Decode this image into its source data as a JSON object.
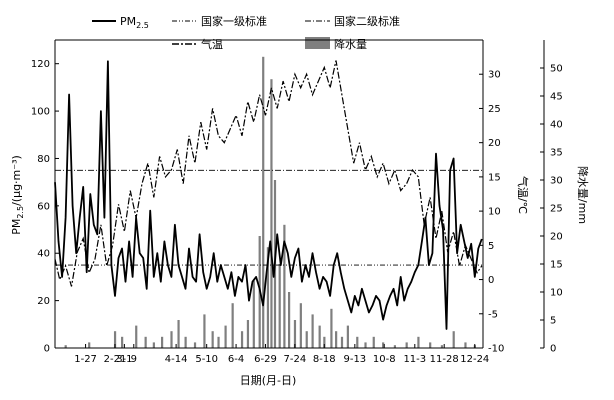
{
  "chart_data": {
    "type": "line",
    "x_label": "日期(月-日)",
    "x_ticks": [
      "1-27",
      "2-21",
      "3-1",
      "9",
      "4-14",
      "5-10",
      "6-4",
      "6-29",
      "7-24",
      "8-18",
      "9-13",
      "10-8",
      "11-3",
      "11-28",
      "12-24"
    ],
    "x_tick_days": [
      27,
      52,
      60,
      68,
      104,
      130,
      155,
      180,
      205,
      230,
      256,
      281,
      307,
      332,
      358
    ],
    "x_range": [
      1,
      365
    ],
    "y_left": {
      "label": "PM",
      "label_sub": "2.5",
      "label_rest": "/(μg·m⁻³)",
      "range": [
        0,
        130
      ],
      "ticks": [
        0,
        20,
        40,
        60,
        80,
        100,
        120
      ]
    },
    "y_right1": {
      "label": "气温/℃",
      "range": [
        -10,
        35
      ],
      "ticks": [
        -10,
        -5,
        0,
        5,
        10,
        15,
        20,
        25,
        30
      ]
    },
    "y_right2": {
      "label": "降水量/mm",
      "range": [
        0,
        55
      ],
      "ticks": [
        0,
        5,
        10,
        15,
        20,
        25,
        30,
        35,
        40,
        45,
        50
      ]
    },
    "reference_lines": [
      {
        "name": "国家一级标准",
        "value": 35,
        "axis": "left"
      },
      {
        "name": "国家二级标准",
        "value": 75,
        "axis": "left"
      }
    ],
    "legend": {
      "pm": "PM",
      "pm_sub": "2.5",
      "grade1": "国家一级标准",
      "grade2": "国家二级标准",
      "temp": "气温",
      "precip": "降水量"
    },
    "pm25": {
      "x": [
        1,
        4,
        7,
        10,
        13,
        16,
        19,
        22,
        25,
        28,
        31,
        34,
        37,
        40,
        43,
        46,
        49,
        52,
        55,
        58,
        61,
        64,
        67,
        70,
        73,
        76,
        79,
        82,
        85,
        88,
        91,
        94,
        97,
        100,
        103,
        106,
        109,
        112,
        115,
        118,
        121,
        124,
        127,
        130,
        133,
        136,
        139,
        142,
        145,
        148,
        151,
        154,
        157,
        160,
        163,
        166,
        169,
        172,
        175,
        178,
        181,
        184,
        187,
        190,
        193,
        196,
        199,
        202,
        205,
        208,
        211,
        214,
        217,
        220,
        223,
        226,
        229,
        232,
        235,
        238,
        241,
        244,
        247,
        250,
        253,
        256,
        259,
        262,
        265,
        268,
        271,
        274,
        277,
        280,
        283,
        286,
        289,
        292,
        295,
        298,
        301,
        304,
        307,
        310,
        313,
        316,
        319,
        322,
        325,
        328,
        331,
        334,
        337,
        340,
        343,
        346,
        349,
        352,
        355,
        358,
        361,
        364
      ],
      "y": [
        70,
        45,
        30,
        55,
        107,
        60,
        40,
        55,
        68,
        32,
        65,
        52,
        48,
        100,
        55,
        121,
        35,
        22,
        38,
        42,
        28,
        45,
        30,
        55,
        40,
        38,
        25,
        58,
        30,
        40,
        28,
        45,
        35,
        30,
        52,
        35,
        30,
        25,
        42,
        30,
        28,
        48,
        32,
        25,
        30,
        40,
        28,
        35,
        30,
        25,
        32,
        22,
        30,
        28,
        35,
        20,
        28,
        30,
        25,
        18,
        32,
        45,
        30,
        48,
        35,
        45,
        40,
        30,
        38,
        42,
        28,
        35,
        30,
        40,
        32,
        25,
        30,
        28,
        22,
        35,
        40,
        32,
        25,
        20,
        15,
        22,
        18,
        25,
        20,
        15,
        18,
        22,
        20,
        12,
        18,
        22,
        25,
        18,
        30,
        20,
        25,
        28,
        32,
        35,
        45,
        55,
        35,
        40,
        82,
        60,
        50,
        8,
        75,
        80,
        40,
        52,
        45,
        38,
        44,
        30,
        42,
        46
      ]
    },
    "temperature": {
      "x": [
        1,
        5,
        10,
        15,
        20,
        25,
        30,
        35,
        40,
        45,
        50,
        55,
        60,
        65,
        70,
        75,
        80,
        85,
        90,
        95,
        100,
        105,
        110,
        115,
        120,
        125,
        130,
        135,
        140,
        145,
        150,
        155,
        160,
        165,
        170,
        175,
        180,
        185,
        190,
        195,
        200,
        205,
        210,
        215,
        220,
        225,
        230,
        235,
        240,
        245,
        250,
        255,
        260,
        265,
        270,
        275,
        280,
        285,
        290,
        295,
        300,
        305,
        310,
        315,
        320,
        325,
        330,
        335,
        340,
        345,
        350,
        355,
        360,
        364
      ],
      "y": [
        3,
        0,
        2,
        -1,
        4,
        6,
        1,
        3,
        8,
        2,
        5,
        11,
        7,
        13,
        9,
        14,
        17,
        12,
        18,
        15,
        16,
        19,
        14,
        21,
        17,
        23,
        19,
        25,
        21,
        20,
        22,
        24,
        21,
        26,
        23,
        27,
        24,
        28,
        25,
        29,
        26,
        30,
        28,
        30,
        27,
        29,
        31,
        28,
        32,
        27,
        22,
        17,
        20,
        16,
        18,
        15,
        17,
        14,
        16,
        13,
        14,
        16,
        15,
        8,
        12,
        6,
        10,
        4,
        7,
        2,
        5,
        3,
        1,
        2
      ]
    },
    "precipitation": {
      "x": [
        10,
        30,
        52,
        58,
        70,
        78,
        85,
        92,
        100,
        106,
        112,
        120,
        128,
        135,
        140,
        146,
        152,
        160,
        165,
        170,
        175,
        178,
        182,
        185,
        188,
        192,
        196,
        200,
        205,
        210,
        215,
        220,
        226,
        230,
        236,
        240,
        245,
        250,
        258,
        265,
        272,
        280,
        290,
        300,
        310,
        320,
        330,
        340,
        350,
        358
      ],
      "y": [
        0.5,
        1,
        3,
        2,
        4,
        2,
        1,
        2,
        3,
        5,
        2,
        1,
        6,
        3,
        2,
        4,
        8,
        3,
        5,
        12,
        20,
        52,
        18,
        48,
        30,
        15,
        22,
        10,
        5,
        8,
        3,
        6,
        4,
        2,
        7,
        3,
        2,
        4,
        2,
        1,
        2,
        1,
        0.5,
        1,
        2,
        1,
        0.5,
        3,
        1,
        0.5
      ]
    }
  }
}
